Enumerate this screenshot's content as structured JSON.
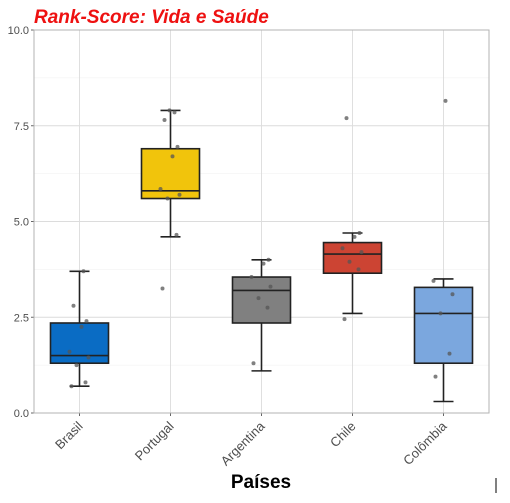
{
  "chart_data": {
    "type": "boxplot",
    "title": "Rank-Score: Vida e Saúde",
    "xlabel": "Países",
    "ylabel": "",
    "ylim": [
      0,
      10
    ],
    "yticks": [
      0.0,
      2.5,
      5.0,
      7.5,
      10.0
    ],
    "ytick_labels": [
      "0.0",
      "2.5",
      "5.0",
      "7.5",
      "10.0"
    ],
    "grid": true,
    "categories": [
      "Brasil",
      "Portugal",
      "Argentina",
      "Chile",
      "Colômbia"
    ],
    "boxes": [
      {
        "category": "Brasil",
        "color": "#0a6cc4",
        "whisker_low": 0.7,
        "q1": 1.3,
        "median": 1.5,
        "q3": 2.35,
        "whisker_high": 3.7,
        "points": [
          0.7,
          0.8,
          1.25,
          1.45,
          1.6,
          2.25,
          2.4,
          2.8,
          3.7
        ]
      },
      {
        "category": "Portugal",
        "color": "#f1c40c",
        "whisker_low": 4.6,
        "q1": 5.6,
        "median": 5.8,
        "q3": 6.9,
        "whisker_high": 7.9,
        "points": [
          3.25,
          4.65,
          5.6,
          5.7,
          5.85,
          6.7,
          6.95,
          7.65,
          7.85,
          7.9
        ]
      },
      {
        "category": "Argentina",
        "color": "#808080",
        "whisker_low": 1.1,
        "q1": 2.35,
        "median": 3.2,
        "q3": 3.55,
        "whisker_high": 4.0,
        "points": [
          1.3,
          2.75,
          3.0,
          3.3,
          3.55,
          3.9,
          4.0
        ]
      },
      {
        "category": "Chile",
        "color": "#cc4433",
        "whisker_low": 2.6,
        "q1": 3.65,
        "median": 4.15,
        "q3": 4.45,
        "whisker_high": 4.7,
        "points": [
          2.45,
          3.75,
          3.95,
          4.2,
          4.3,
          4.6,
          4.7,
          7.7
        ]
      },
      {
        "category": "Colômbia",
        "color": "#7ba7de",
        "whisker_low": 0.3,
        "q1": 1.3,
        "median": 2.6,
        "q3": 3.28,
        "whisker_high": 3.5,
        "points": [
          0.95,
          1.55,
          2.6,
          3.1,
          3.45,
          8.15
        ]
      }
    ]
  }
}
